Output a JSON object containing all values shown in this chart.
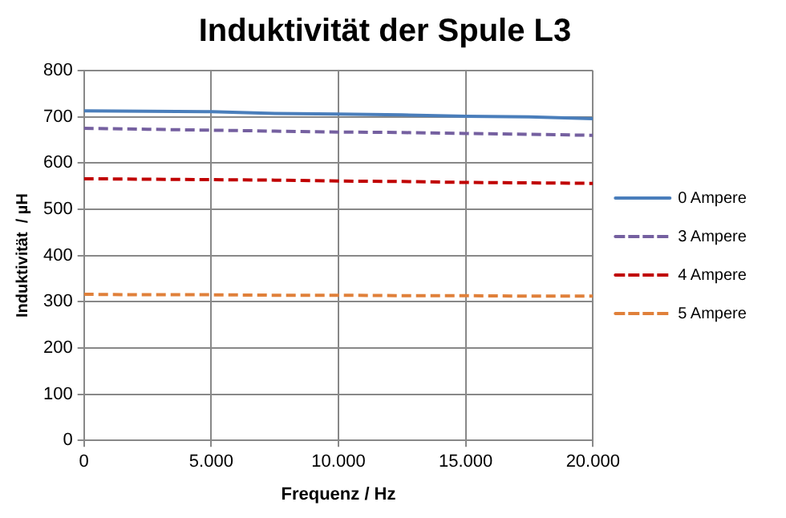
{
  "chart_data": {
    "type": "line",
    "title": "Induktivität der Spule L3",
    "xlabel": "Frequenz / Hz",
    "ylabel": "Induktivität  / µH",
    "x": [
      0,
      2500,
      5000,
      7500,
      10000,
      12500,
      15000,
      17500,
      20000
    ],
    "series": [
      {
        "name": "0 Ampere",
        "color": "#4a7ebb",
        "line_style": "solid",
        "values": [
          713,
          712,
          711,
          707,
          706,
          704,
          701,
          700,
          696
        ]
      },
      {
        "name": "3 Ampere",
        "color": "#7560a0",
        "line_style": "dashed",
        "values": [
          675,
          673,
          671,
          669,
          667,
          666,
          664,
          662,
          660
        ]
      },
      {
        "name": "4 Ampere",
        "color": "#c00000",
        "line_style": "dashed",
        "values": [
          566,
          565,
          564,
          563,
          561,
          560,
          558,
          557,
          556
        ]
      },
      {
        "name": "5 Ampere",
        "color": "#e0803a",
        "line_style": "dashed",
        "values": [
          316,
          315,
          315,
          314,
          314,
          313,
          313,
          312,
          312
        ]
      }
    ],
    "xlim": [
      0,
      20000
    ],
    "xticks": [
      0,
      {
        "value": 5000,
        "label": "5.000"
      },
      {
        "value": 10000,
        "label": "10.000"
      },
      {
        "value": 15000,
        "label": "15.000"
      },
      {
        "value": 20000,
        "label": "20.000"
      }
    ],
    "ylim": [
      0,
      800
    ],
    "yticks": [
      0,
      100,
      200,
      300,
      400,
      500,
      600,
      700,
      800
    ],
    "grid": true,
    "legend": "right",
    "marker": "none"
  }
}
